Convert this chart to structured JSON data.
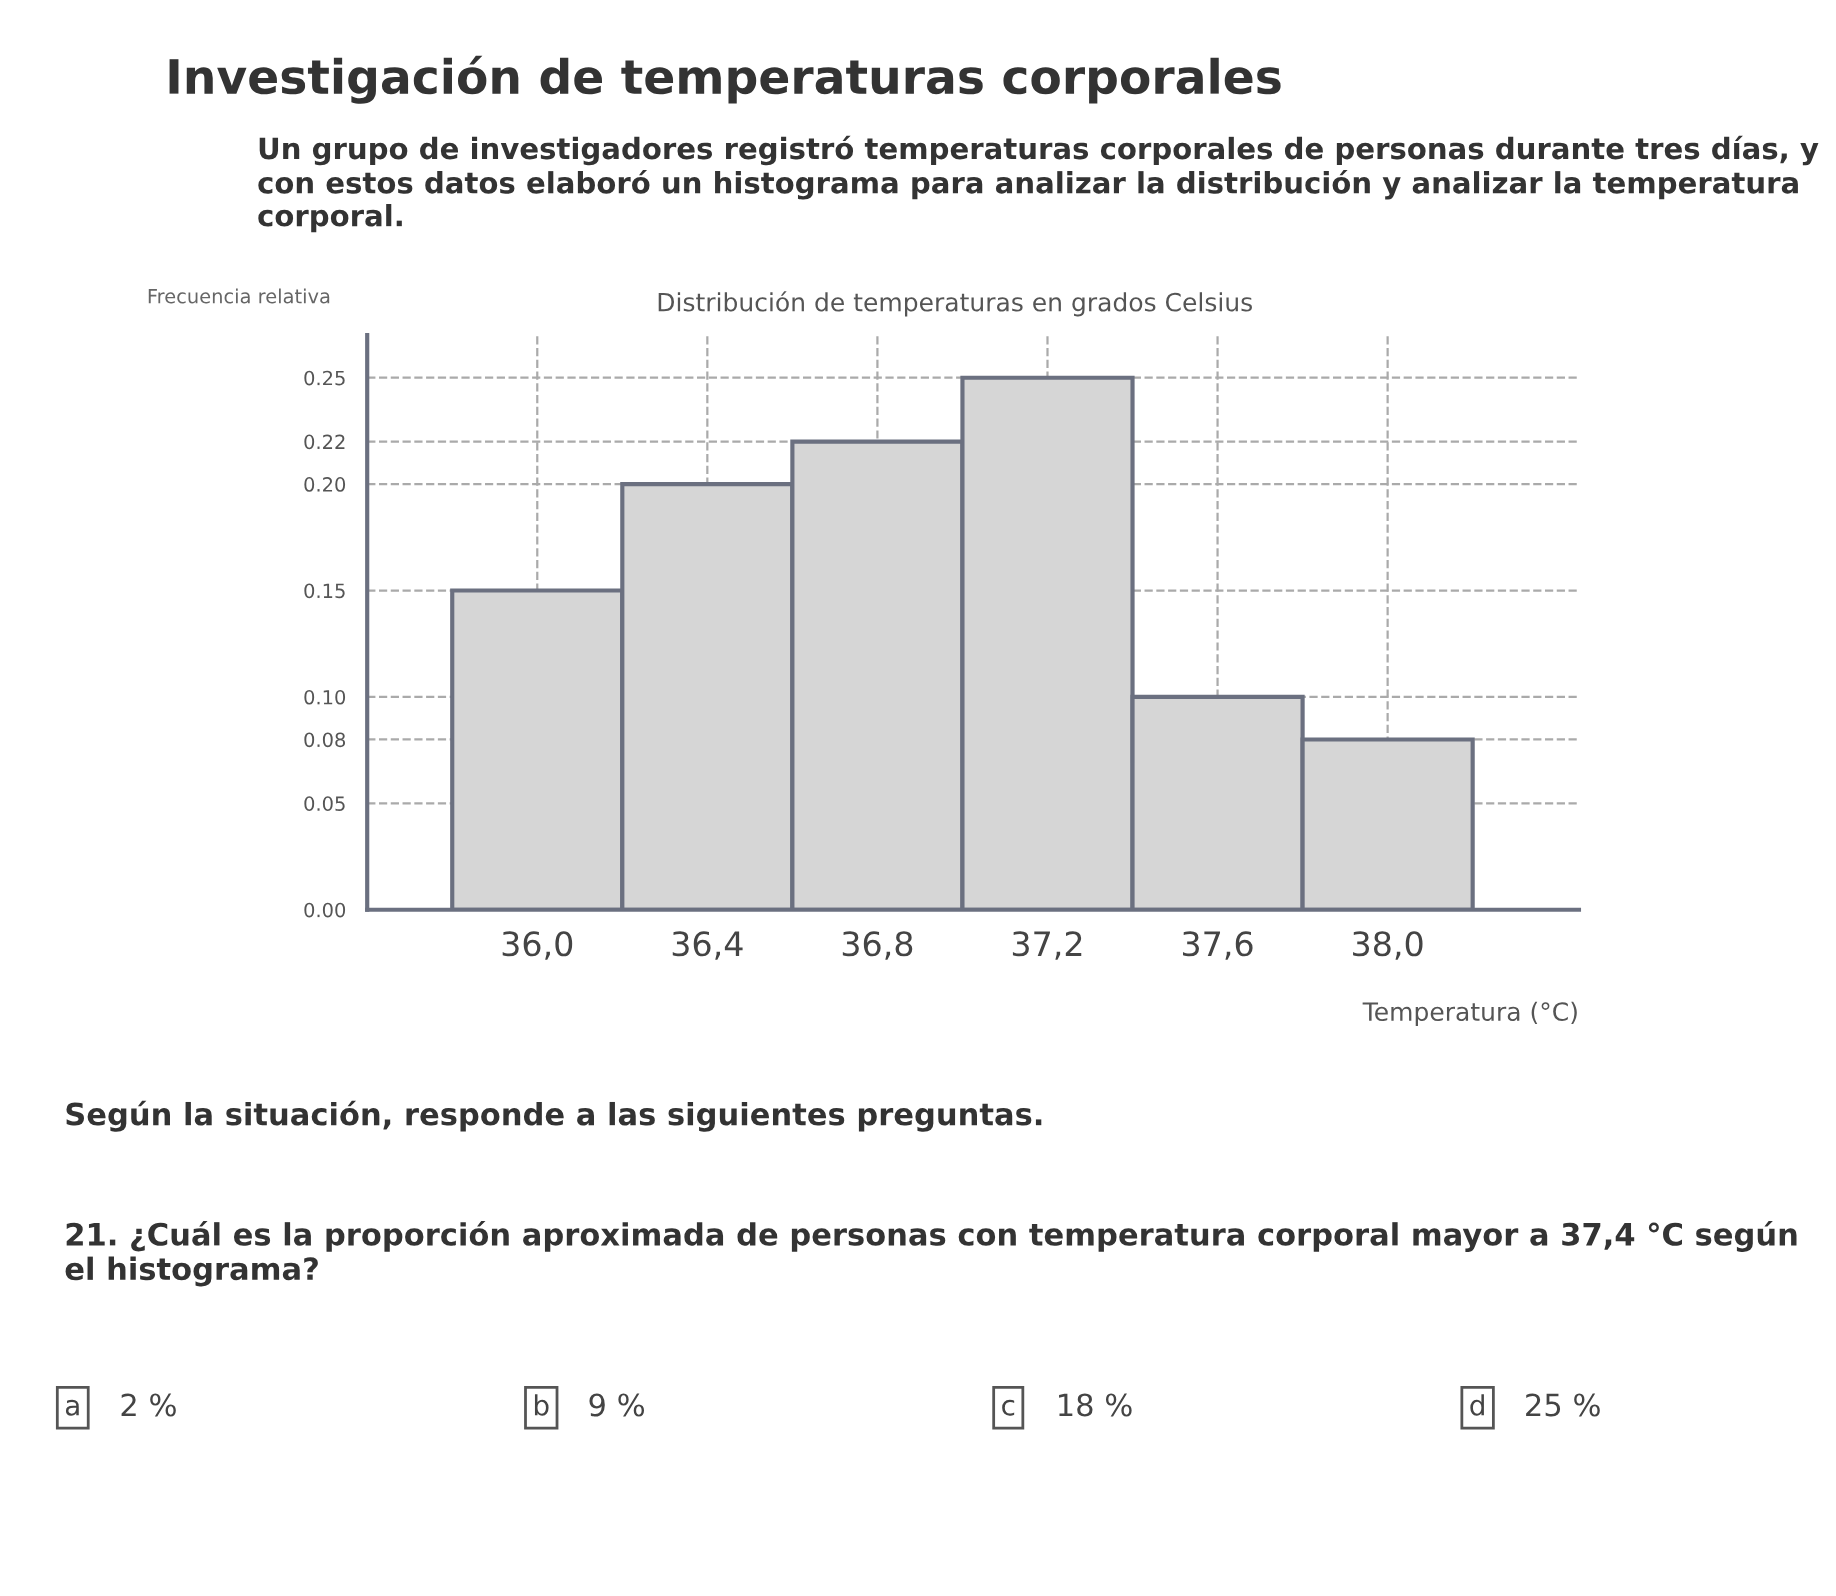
{
  "chart_data": {
    "type": "histogram",
    "title": "Investigación de temperaturas corporales",
    "subtitle": "Un grupo de investigadores registró temperaturas corporales de personas durante tres días, y con estos datos elaboró un histograma para analizar la distribución y analizar la temperatura corporal.",
    "xlabel": "Temperatura (°C)",
    "ylabel": "Frecuencia relativa",
    "bins": [
      35.8,
      36.2,
      36.6,
      37.0,
      37.4,
      37.8,
      38.2
    ],
    "values": [
      0.15,
      0.2,
      0.22,
      0.25,
      0.1,
      0.08
    ],
    "color": "#d6d6d6",
    "xlim": [
      35.6,
      38.45
    ],
    "ylim": [
      0,
      0.27
    ],
    "xticks": [
      {
        "value": 36.0,
        "label": "36,0"
      },
      {
        "value": 36.4,
        "label": "36,4"
      },
      {
        "value": 36.8,
        "label": "36,8"
      },
      {
        "value": 37.2,
        "label": "37,2"
      },
      {
        "value": 37.6,
        "label": "37,6"
      },
      {
        "value": 38.0,
        "label": "38,0"
      }
    ],
    "yticks": [
      {
        "value": 0,
        "label": "0.00"
      },
      {
        "value": 0.05,
        "label": "0.05"
      },
      {
        "value": 0.08,
        "label": "0.08"
      },
      {
        "value": 0.1,
        "label": "0.10"
      },
      {
        "value": 0.15,
        "label": "0.15"
      },
      {
        "value": 0.2,
        "label": "0.20"
      },
      {
        "value": 0.22,
        "label": "0.22"
      },
      {
        "value": 0.25,
        "label": "0.25"
      }
    ],
    "grid": true,
    "annotations": [
      "Distribución de temperaturas en grados Celsius",
      "Según la situación, responde a las siguientes preguntas.",
      "21. ¿Cuál es la proporción aproximada de personas con temperatura corporal mayor a 37,4 °C según el histograma?",
      "a",
      "2 %",
      "b",
      "9 %",
      "c",
      "18 %",
      "d",
      "25 %"
    ]
  }
}
